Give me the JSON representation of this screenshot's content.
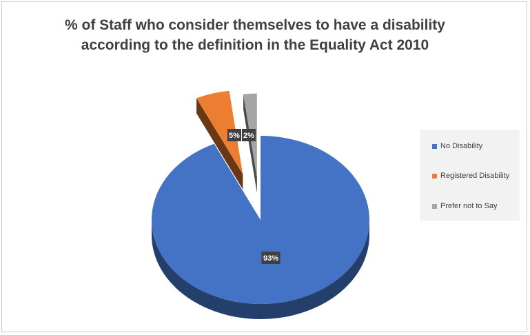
{
  "chart_data": {
    "type": "pie",
    "title_lines": [
      "% of Staff who consider themselves to have a disability",
      "according to the definition in the Equality Act 2010"
    ],
    "categories": [
      "No Disability",
      "Registered Disability",
      "Prefer not to Say"
    ],
    "values": [
      93,
      5,
      2
    ],
    "data_labels": [
      "93%",
      "5%",
      "2%"
    ],
    "colors": [
      "#4472c4",
      "#ed7d31",
      "#a5a5a5"
    ],
    "exploded": [
      false,
      true,
      true
    ],
    "legend_position": "right",
    "style": "3d-exploded-pie"
  }
}
